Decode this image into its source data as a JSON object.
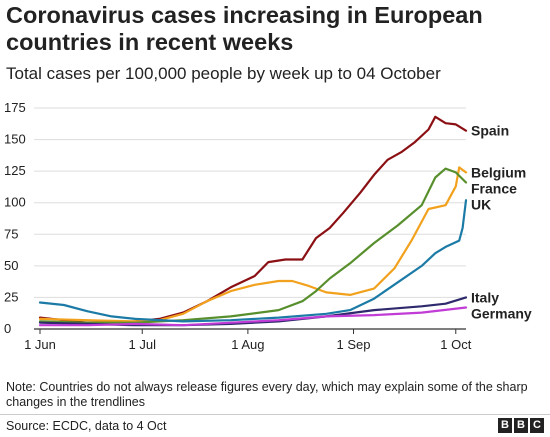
{
  "title": "Coronavirus cases increasing in European countries in recent weeks",
  "subtitle": "Total cases per 100,000 people by week up to 04 October",
  "note": "Note: Countries do not always release figures every day, which may explain some of the sharp changes in the trendlines",
  "source": "Source: ECDC, data to 4 Oct",
  "logo": [
    "B",
    "B",
    "C"
  ],
  "chart_data": {
    "type": "line",
    "title": "Coronavirus cases increasing in European countries in recent weeks",
    "subtitle": "Total cases per 100,000 people by week up to 04 October",
    "xlabel": "",
    "ylabel": "",
    "xlim": [
      "2020-06-01",
      "2020-10-04"
    ],
    "ylim": [
      0,
      175
    ],
    "yticks": [
      0,
      25,
      50,
      75,
      100,
      125,
      150,
      175
    ],
    "yticklabels": [
      "0",
      "25",
      "50",
      "75",
      "100",
      "125",
      "150",
      "175"
    ],
    "xticks": [
      "2020-06-01",
      "2020-07-01",
      "2020-08-01",
      "2020-09-01",
      "2020-10-01"
    ],
    "xticklabels": [
      "1 Jun",
      "1 Jul",
      "1 Aug",
      "1 Sep",
      "1 Oct"
    ],
    "grid": "horizontal",
    "legend": "direct labels at right end of lines",
    "series": [
      {
        "name": "Spain",
        "color": "#8b1014",
        "points": [
          [
            "2020-06-01",
            9
          ],
          [
            "2020-06-08",
            7
          ],
          [
            "2020-06-15",
            5
          ],
          [
            "2020-06-22",
            5
          ],
          [
            "2020-06-29",
            6
          ],
          [
            "2020-07-06",
            8
          ],
          [
            "2020-07-13",
            13
          ],
          [
            "2020-07-20",
            22
          ],
          [
            "2020-07-27",
            33
          ],
          [
            "2020-08-03",
            42
          ],
          [
            "2020-08-07",
            53
          ],
          [
            "2020-08-12",
            55
          ],
          [
            "2020-08-17",
            55
          ],
          [
            "2020-08-21",
            72
          ],
          [
            "2020-08-25",
            80
          ],
          [
            "2020-08-29",
            92
          ],
          [
            "2020-09-03",
            108
          ],
          [
            "2020-09-07",
            122
          ],
          [
            "2020-09-11",
            134
          ],
          [
            "2020-09-15",
            140
          ],
          [
            "2020-09-19",
            148
          ],
          [
            "2020-09-23",
            158
          ],
          [
            "2020-09-25",
            168
          ],
          [
            "2020-09-28",
            163
          ],
          [
            "2020-10-01",
            162
          ],
          [
            "2020-10-04",
            157
          ]
        ]
      },
      {
        "name": "Belgium",
        "color": "#f2a11d",
        "points": [
          [
            "2020-06-01",
            8
          ],
          [
            "2020-06-15",
            7
          ],
          [
            "2020-06-29",
            6
          ],
          [
            "2020-07-06",
            7
          ],
          [
            "2020-07-13",
            12
          ],
          [
            "2020-07-20",
            22
          ],
          [
            "2020-07-27",
            30
          ],
          [
            "2020-08-03",
            35
          ],
          [
            "2020-08-10",
            38
          ],
          [
            "2020-08-14",
            38
          ],
          [
            "2020-08-19",
            34
          ],
          [
            "2020-08-24",
            29
          ],
          [
            "2020-08-31",
            27
          ],
          [
            "2020-09-07",
            32
          ],
          [
            "2020-09-13",
            48
          ],
          [
            "2020-09-18",
            70
          ],
          [
            "2020-09-23",
            95
          ],
          [
            "2020-09-28",
            98
          ],
          [
            "2020-10-01",
            113
          ],
          [
            "2020-10-02",
            128
          ],
          [
            "2020-10-04",
            124
          ]
        ]
      },
      {
        "name": "France",
        "color": "#588f2d",
        "points": [
          [
            "2020-06-01",
            6
          ],
          [
            "2020-06-15",
            5
          ],
          [
            "2020-06-29",
            5
          ],
          [
            "2020-07-13",
            7
          ],
          [
            "2020-07-27",
            10
          ],
          [
            "2020-08-10",
            15
          ],
          [
            "2020-08-17",
            22
          ],
          [
            "2020-08-21",
            30
          ],
          [
            "2020-08-25",
            40
          ],
          [
            "2020-08-31",
            52
          ],
          [
            "2020-09-07",
            68
          ],
          [
            "2020-09-14",
            82
          ],
          [
            "2020-09-21",
            98
          ],
          [
            "2020-09-25",
            120
          ],
          [
            "2020-09-28",
            127
          ],
          [
            "2020-10-01",
            124
          ],
          [
            "2020-10-04",
            116
          ]
        ]
      },
      {
        "name": "UK",
        "color": "#1c7ba6",
        "points": [
          [
            "2020-06-01",
            21
          ],
          [
            "2020-06-08",
            19
          ],
          [
            "2020-06-15",
            14
          ],
          [
            "2020-06-22",
            10
          ],
          [
            "2020-06-29",
            8
          ],
          [
            "2020-07-13",
            6
          ],
          [
            "2020-07-27",
            7
          ],
          [
            "2020-08-10",
            9
          ],
          [
            "2020-08-24",
            12
          ],
          [
            "2020-08-31",
            15
          ],
          [
            "2020-09-07",
            24
          ],
          [
            "2020-09-14",
            37
          ],
          [
            "2020-09-21",
            50
          ],
          [
            "2020-09-25",
            60
          ],
          [
            "2020-09-28",
            65
          ],
          [
            "2020-10-02",
            70
          ],
          [
            "2020-10-03",
            80
          ],
          [
            "2020-10-04",
            102
          ]
        ]
      },
      {
        "name": "Italy",
        "color": "#2e2a6d",
        "points": [
          [
            "2020-06-01",
            5
          ],
          [
            "2020-06-15",
            4
          ],
          [
            "2020-06-29",
            3
          ],
          [
            "2020-07-13",
            3
          ],
          [
            "2020-07-27",
            4
          ],
          [
            "2020-08-10",
            6
          ],
          [
            "2020-08-24",
            10
          ],
          [
            "2020-09-07",
            15
          ],
          [
            "2020-09-21",
            18
          ],
          [
            "2020-09-28",
            20
          ],
          [
            "2020-10-04",
            25
          ]
        ]
      },
      {
        "name": "Germany",
        "color": "#c13bd6",
        "points": [
          [
            "2020-06-01",
            3
          ],
          [
            "2020-06-15",
            3
          ],
          [
            "2020-06-29",
            4
          ],
          [
            "2020-07-13",
            3
          ],
          [
            "2020-07-27",
            5
          ],
          [
            "2020-08-10",
            7
          ],
          [
            "2020-08-24",
            10
          ],
          [
            "2020-09-07",
            11
          ],
          [
            "2020-09-21",
            13
          ],
          [
            "2020-10-04",
            17
          ]
        ]
      }
    ]
  }
}
